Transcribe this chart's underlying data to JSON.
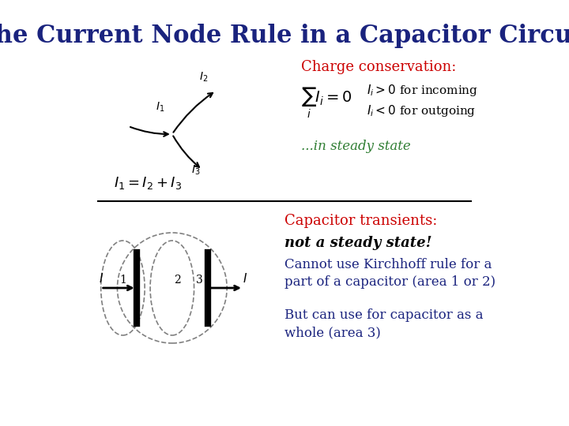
{
  "title": "The Current Node Rule in a Capacitor Circuit",
  "title_color": "#1a237e",
  "title_fontsize": 22,
  "bg_color": "#ffffff",
  "charge_conservation_label": "Charge conservation:",
  "charge_conservation_color": "#cc0000",
  "sum_formula": "$\\sum_i I_i = 0$",
  "ii_positive": "$I_i > 0$ for incoming",
  "ii_negative": "$I_i < 0$ for outgoing",
  "ii_color": "#000000",
  "steady_state": "...in steady state",
  "steady_state_color": "#2e7d32",
  "equation_label": "$I_1 = I_2 + I_3$",
  "equation_color": "#000000",
  "divider_color": "#000000",
  "cap_transients_label": "Capacitor transients:",
  "cap_transients_color": "#cc0000",
  "not_steady": "not a steady state!",
  "not_steady_color": "#000000",
  "kirchhoff_line1": "Cannot use Kirchhoff rule for a",
  "kirchhoff_line2": "part of a capacitor (area 1 or 2)",
  "kirchhoff_color": "#1a237e",
  "but_can_line1": "But can use for capacitor as a",
  "but_can_line2": "whole (area 3)",
  "but_can_color": "#1a237e"
}
